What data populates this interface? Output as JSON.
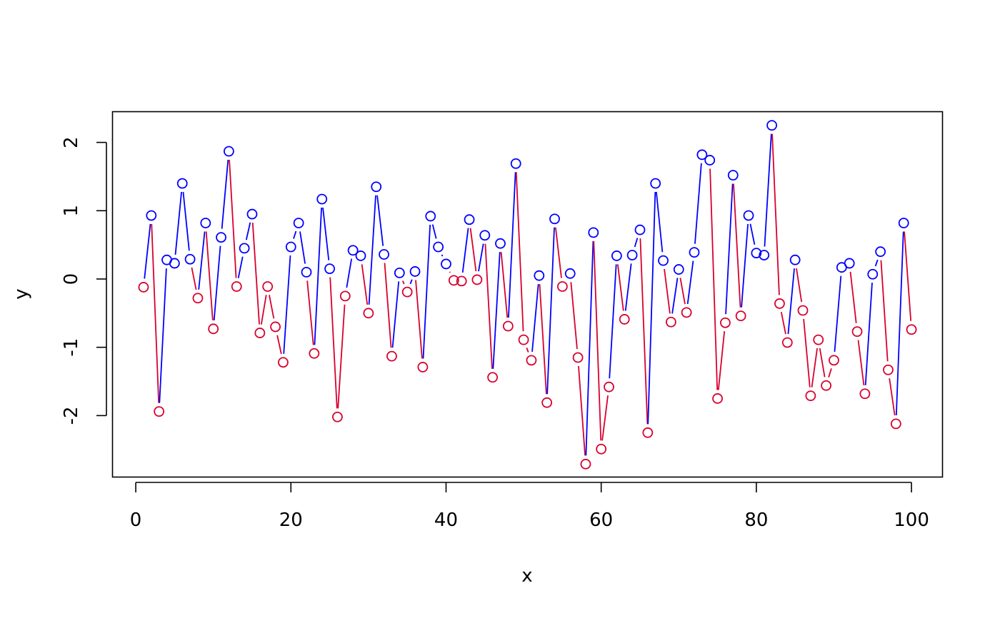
{
  "chart_data": {
    "type": "line",
    "title": "",
    "xlabel": "x",
    "ylabel": "y",
    "xlim": [
      -3,
      104
    ],
    "ylim": [
      -2.9,
      2.45
    ],
    "xticks": [
      0,
      20,
      40,
      60,
      80,
      100
    ],
    "yticks": [
      -2,
      -1,
      0,
      1,
      2
    ],
    "grid": false,
    "colors": {
      "positive": "#0000ff",
      "negative": "#d8002e",
      "axis": "#000000"
    },
    "x": [
      1,
      2,
      3,
      4,
      5,
      6,
      7,
      8,
      9,
      10,
      11,
      12,
      13,
      14,
      15,
      16,
      17,
      18,
      19,
      20,
      21,
      22,
      23,
      24,
      25,
      26,
      27,
      28,
      29,
      30,
      31,
      32,
      33,
      34,
      35,
      36,
      37,
      38,
      39,
      40,
      41,
      42,
      43,
      44,
      45,
      46,
      47,
      48,
      49,
      50,
      51,
      52,
      53,
      54,
      55,
      56,
      57,
      58,
      59,
      60,
      61,
      62,
      63,
      64,
      65,
      66,
      67,
      68,
      69,
      70,
      71,
      72,
      73,
      74,
      75,
      76,
      77,
      78,
      79,
      80,
      81,
      82,
      83,
      84,
      85,
      86,
      87,
      88,
      89,
      90,
      91,
      92,
      93,
      94,
      95,
      96,
      97,
      98,
      99,
      100
    ],
    "y": [
      -0.12,
      0.93,
      -1.94,
      0.28,
      0.23,
      1.4,
      0.29,
      -0.28,
      0.82,
      -0.73,
      0.61,
      1.87,
      -0.11,
      0.45,
      0.95,
      -0.79,
      -0.11,
      -0.7,
      -1.22,
      0.47,
      0.82,
      0.1,
      -1.09,
      1.17,
      0.15,
      -2.02,
      -0.25,
      0.42,
      0.34,
      -0.5,
      1.35,
      0.36,
      -1.13,
      0.09,
      -0.19,
      0.11,
      -1.29,
      0.92,
      0.47,
      0.22,
      -0.02,
      -0.03,
      0.87,
      -0.01,
      0.64,
      -1.44,
      0.52,
      -0.69,
      1.69,
      -0.89,
      -1.19,
      0.05,
      -1.81,
      0.88,
      -0.11,
      0.08,
      -1.15,
      -2.71,
      0.68,
      -2.49,
      -1.58,
      0.34,
      -0.59,
      0.35,
      0.72,
      -2.25,
      1.4,
      0.27,
      -0.63,
      0.14,
      -0.49,
      0.39,
      1.82,
      1.74,
      -1.75,
      -0.64,
      1.52,
      -0.54,
      0.93,
      0.38,
      0.35,
      2.25,
      -0.36,
      -0.93,
      0.28,
      -0.46,
      -1.71,
      -0.89,
      -1.56,
      -1.19,
      0.17,
      0.23,
      -0.77,
      -1.68,
      0.07,
      0.4,
      -1.33,
      -2.12,
      0.82,
      -0.74
    ]
  }
}
